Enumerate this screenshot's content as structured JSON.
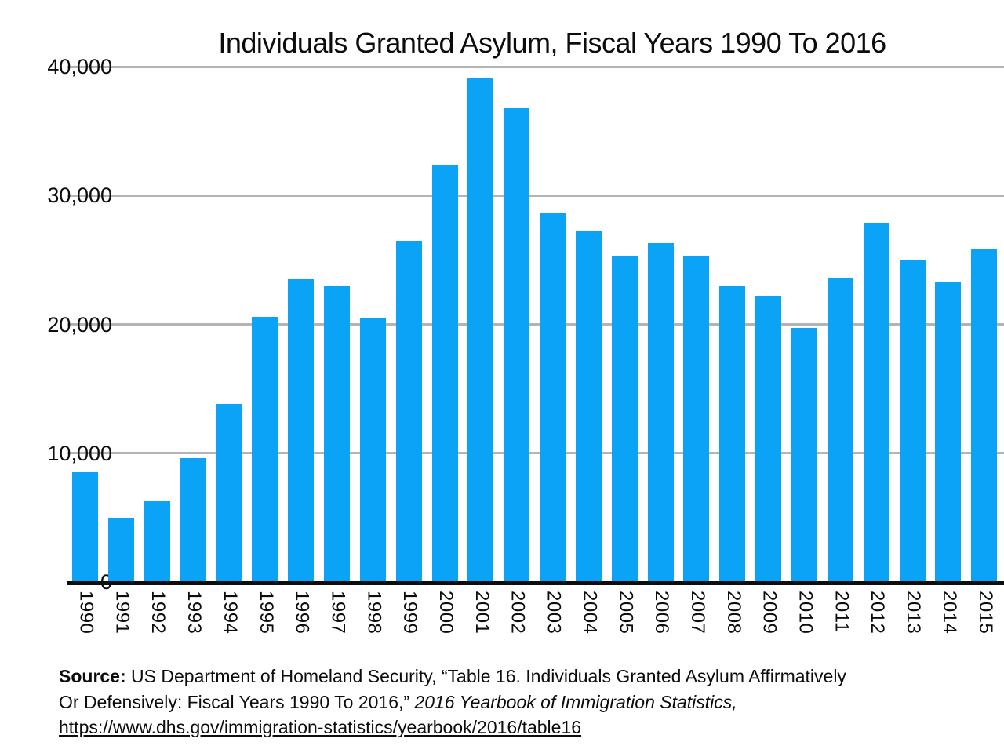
{
  "accent_colors": {
    "bar_blue": "#0aa3f5",
    "gridline_gray": "#b4b4b4",
    "axis_black": "#0d0d0d",
    "text_black": "#0c0c0c"
  },
  "chart_data": {
    "type": "bar",
    "title": "Individuals Granted Asylum, Fiscal Years 1990 To 2016",
    "xlabel": "",
    "ylabel": "",
    "ylim": [
      0,
      40000
    ],
    "grid": "horizontal",
    "legend": "none",
    "bar_color": "#0aa3f5",
    "y_ticks": [
      {
        "value": 0,
        "label": "0"
      },
      {
        "value": 10000,
        "label": "10,000"
      },
      {
        "value": 20000,
        "label": "20,000"
      },
      {
        "value": 30000,
        "label": "30,000"
      },
      {
        "value": 40000,
        "label": "40,000"
      }
    ],
    "note": "Y-axis tick labels are clipped at the left image edge; title mentions 2016 but the 2016 bar is cropped off the right edge",
    "categories": [
      "1990",
      "1991",
      "1992",
      "1993",
      "1994",
      "1995",
      "1996",
      "1997",
      "1998",
      "1999",
      "2000",
      "2001",
      "2002",
      "2003",
      "2004",
      "2005",
      "2006",
      "2007",
      "2008",
      "2009",
      "2010",
      "2011",
      "2012",
      "2013",
      "2014",
      "2015"
    ],
    "values": [
      8500,
      5000,
      6300,
      9600,
      13800,
      20600,
      23500,
      23000,
      20500,
      26500,
      32400,
      39100,
      36800,
      28700,
      27300,
      25300,
      26300,
      25300,
      23000,
      22200,
      19700,
      23600,
      27900,
      25000,
      23300,
      25900
    ]
  },
  "source": {
    "label": "Source:",
    "line1_rest": " US Department of Homeland Security, “Table 16. Individuals Granted Asylum Affirmatively",
    "line2_plain": "Or Defensively: Fiscal Years 1990 To 2016,”",
    "line2_italic": " 2016 Yearbook of Immigration Statistics,",
    "link": "https://www.dhs.gov/immigration-statistics/yearbook/2016/table16"
  }
}
